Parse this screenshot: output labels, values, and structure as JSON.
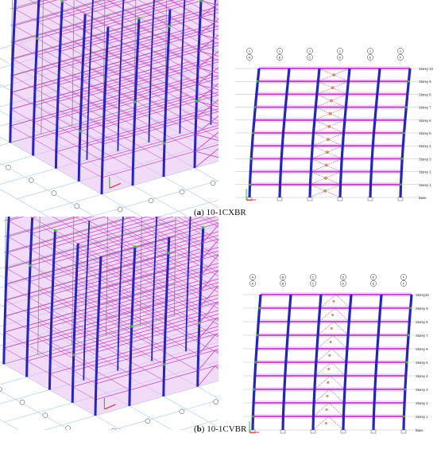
{
  "panels": [
    {
      "id": "a",
      "letter": "a",
      "caption_name": "10-1CXBR",
      "axis_labels": [
        [
          "1",
          "A"
        ],
        [
          "1",
          "B"
        ],
        [
          "1",
          "C"
        ],
        [
          "1",
          "D"
        ],
        [
          "1",
          "E"
        ],
        [
          "1",
          "F"
        ]
      ],
      "storeys": [
        "Storey 10",
        "Storey 9",
        "Storey 8",
        "Storey 7",
        "Storey 6",
        "Storey 5",
        "Storey 4",
        "Storey 3",
        "Storey 2",
        "Storey 1",
        "Base"
      ],
      "brace_type": "X"
    },
    {
      "id": "b",
      "letter": "b",
      "caption_name": "10-1CVBR",
      "axis_labels": [
        [
          "A",
          "A"
        ],
        [
          "B",
          "B"
        ],
        [
          "C",
          "C"
        ],
        [
          "D",
          "D"
        ],
        [
          "E",
          "E"
        ],
        [
          "F",
          "F"
        ]
      ],
      "storeys": [
        "Storey10",
        "Storey 9",
        "Storey 8",
        "Storey 7",
        "Storey 6",
        "Storey 5",
        "Storey 4",
        "Storey 3",
        "Storey 2",
        "Storey 1",
        "Base"
      ],
      "brace_type": "V"
    }
  ],
  "colors": {
    "column": "#2323c8",
    "beam": "#c040c0",
    "wall_fill": "#e6b8ee",
    "grid": "#a8c8e8",
    "frame_grey": "#8a8a8a",
    "hinge_green": "#22cc22",
    "hinge_orange": "#d08040",
    "axis_red": "#e03030"
  }
}
